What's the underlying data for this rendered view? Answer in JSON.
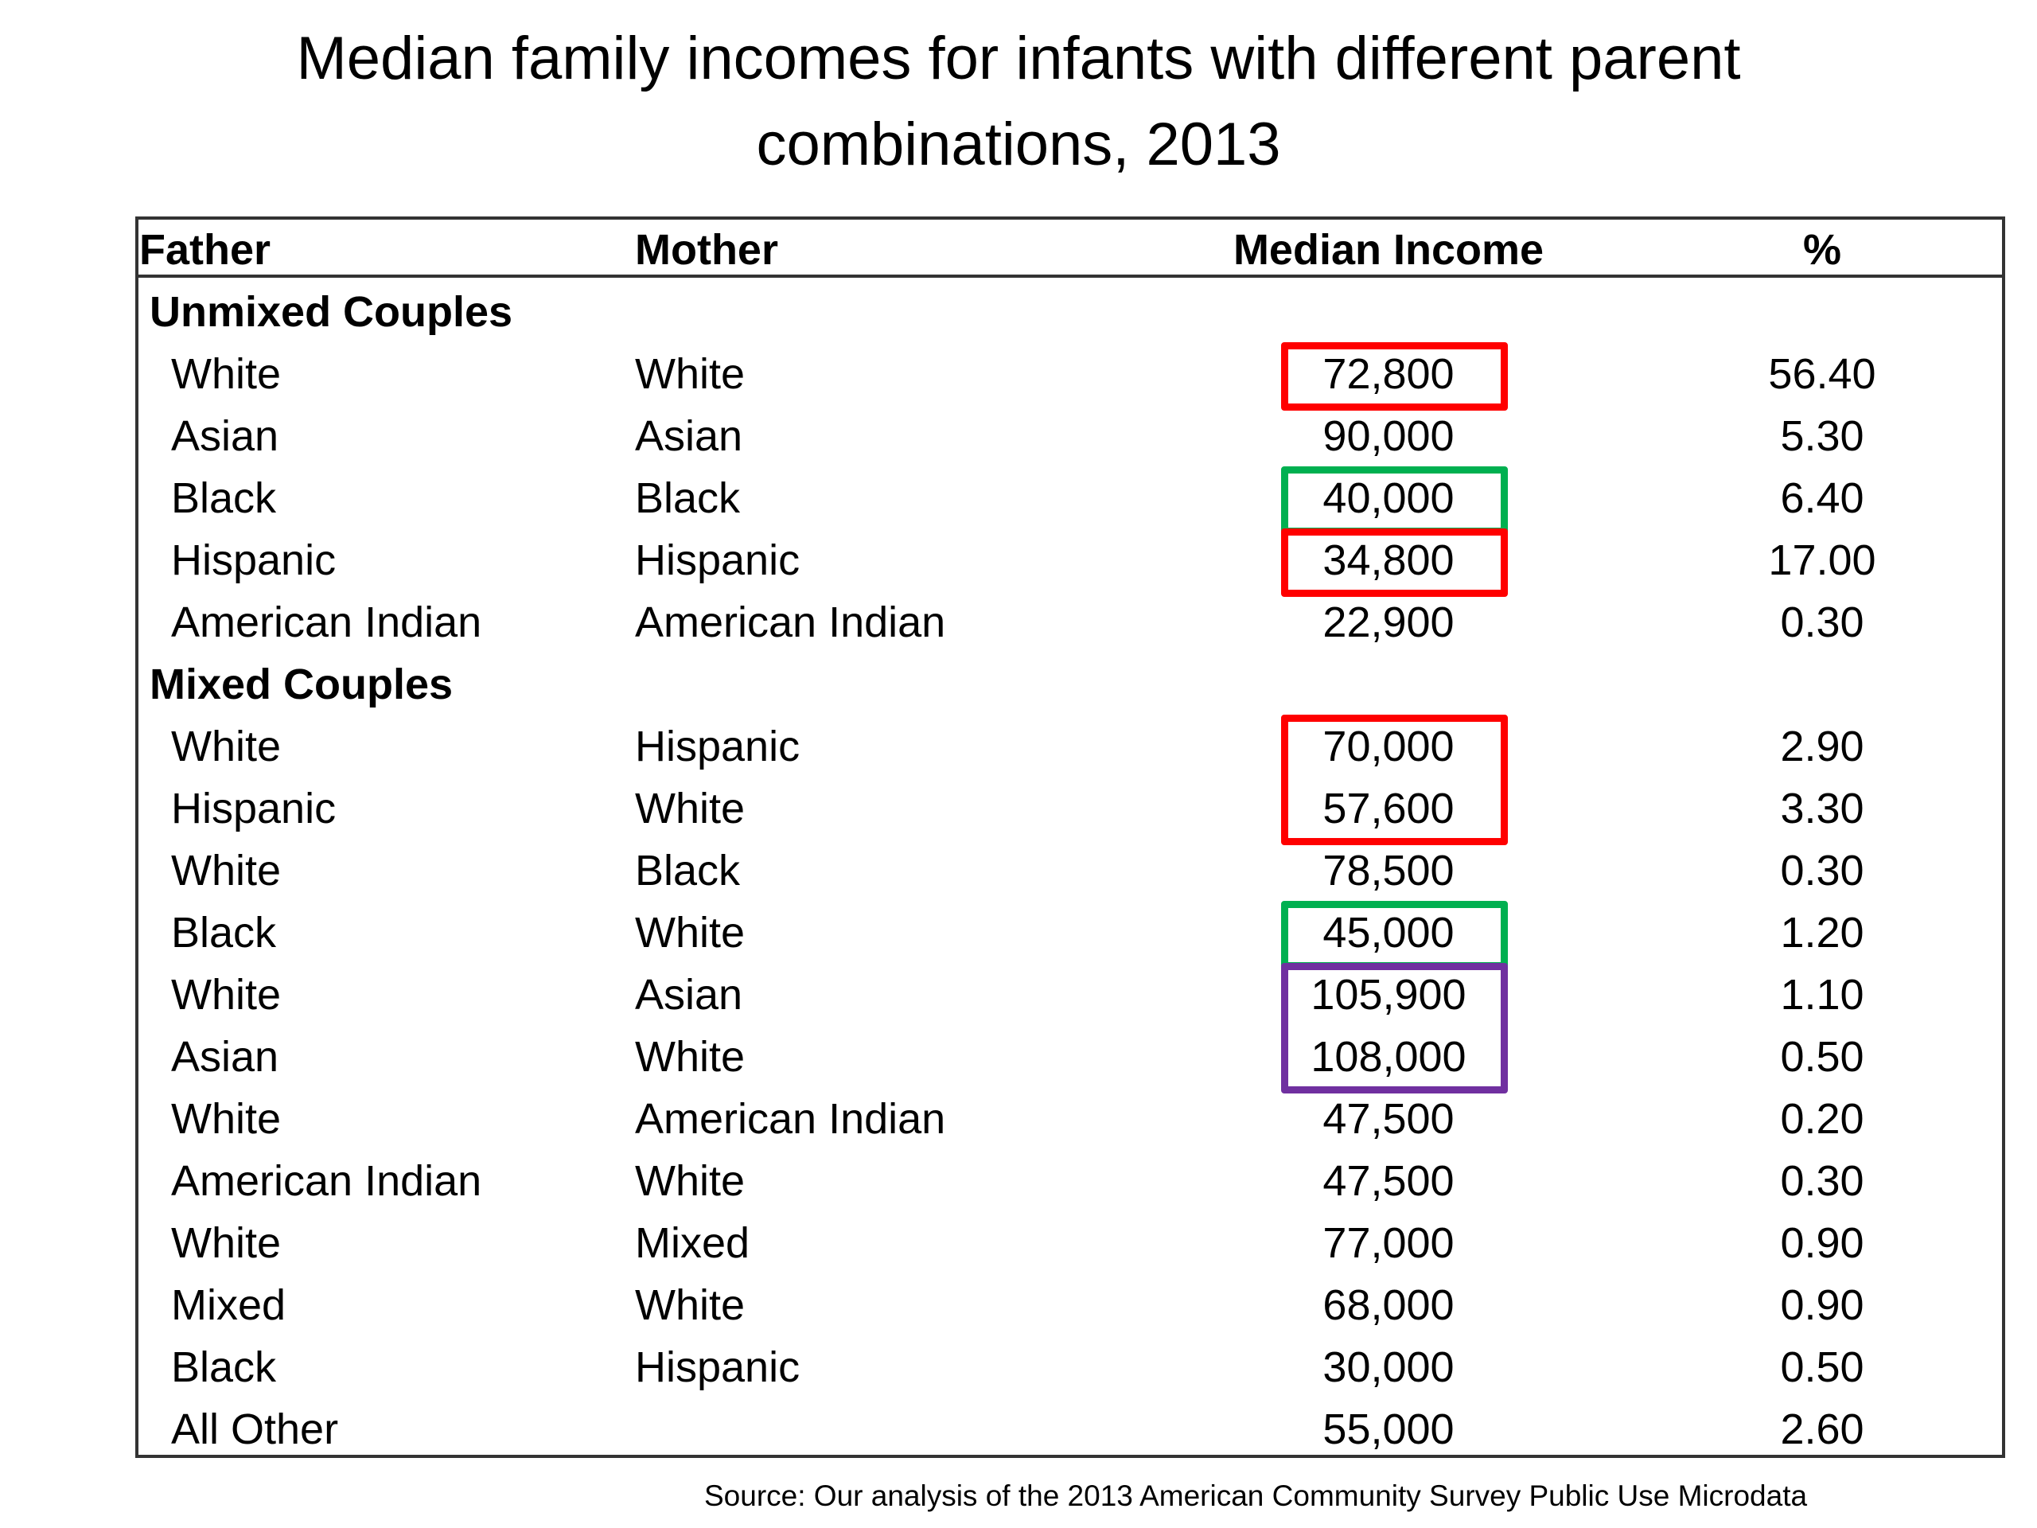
{
  "title_line1": "Median family incomes for infants with different parent",
  "title_line2": "combinations, 2013",
  "source": "Source:  Our analysis of the 2013 American Community Survey Public Use Microdata",
  "chart_data": {
    "type": "table",
    "columns": [
      "Father",
      "Mother",
      "Median Income",
      "%"
    ],
    "sections": [
      {
        "label": "Unmixed Couples",
        "rows": [
          {
            "father": "White",
            "mother": "White",
            "income": "72,800",
            "pct": "56.40",
            "highlight": "red"
          },
          {
            "father": "Asian",
            "mother": "Asian",
            "income": "90,000",
            "pct": "5.30",
            "highlight": ""
          },
          {
            "father": "Black",
            "mother": "Black",
            "income": "40,000",
            "pct": "6.40",
            "highlight": "green"
          },
          {
            "father": "Hispanic",
            "mother": "Hispanic",
            "income": "34,800",
            "pct": "17.00",
            "highlight": "red"
          },
          {
            "father": "American Indian",
            "mother": "American Indian",
            "income": "22,900",
            "pct": "0.30",
            "highlight": ""
          }
        ]
      },
      {
        "label": "Mixed Couples",
        "rows": [
          {
            "father": "White",
            "mother": "Hispanic",
            "income": "70,000",
            "pct": "2.90",
            "highlight": "red"
          },
          {
            "father": "Hispanic",
            "mother": "White",
            "income": "57,600",
            "pct": "3.30",
            "highlight": "red"
          },
          {
            "father": "White",
            "mother": "Black",
            "income": "78,500",
            "pct": "0.30",
            "highlight": ""
          },
          {
            "father": "Black",
            "mother": "White",
            "income": "45,000",
            "pct": "1.20",
            "highlight": "green"
          },
          {
            "father": "White",
            "mother": "Asian",
            "income": "105,900",
            "pct": "1.10",
            "highlight": "purple"
          },
          {
            "father": "Asian",
            "mother": "White",
            "income": "108,000",
            "pct": "0.50",
            "highlight": "purple"
          },
          {
            "father": "White",
            "mother": "American Indian",
            "income": "47,500",
            "pct": "0.20",
            "highlight": ""
          },
          {
            "father": "American Indian",
            "mother": "White",
            "income": "47,500",
            "pct": "0.30",
            "highlight": ""
          },
          {
            "father": "White",
            "mother": "Mixed",
            "income": "77,000",
            "pct": "0.90",
            "highlight": ""
          },
          {
            "father": "Mixed",
            "mother": "White",
            "income": "68,000",
            "pct": "0.90",
            "highlight": ""
          },
          {
            "father": "Black",
            "mother": "Hispanic",
            "income": "30,000",
            "pct": "0.50",
            "highlight": ""
          },
          {
            "father": "All Other",
            "mother": "",
            "income": "55,000",
            "pct": "2.60",
            "highlight": ""
          }
        ]
      }
    ],
    "highlight_colors": {
      "red": "#ff0000",
      "green": "#00b050",
      "purple": "#7030a0"
    }
  }
}
